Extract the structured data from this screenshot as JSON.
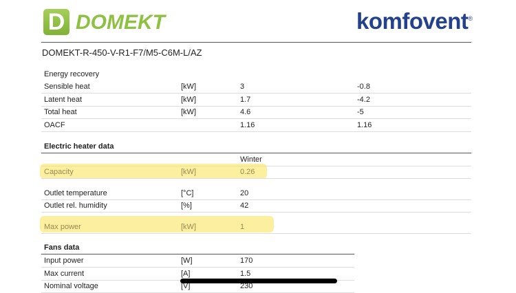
{
  "header": {
    "logo_left": "DOMEKT",
    "logo_left_letter": "D",
    "logo_right": "komfovent",
    "model": "DOMEKT-R-450-V-R1-F7/M5-C6M-L/AZ"
  },
  "energy_recovery": {
    "title": "Energy recovery",
    "rows": [
      {
        "label": "Sensible heat",
        "unit": "[kW]",
        "v1": "3",
        "v2": "-0.8"
      },
      {
        "label": "Latent heat",
        "unit": "[kW]",
        "v1": "1.7",
        "v2": "-4.2"
      },
      {
        "label": "Total heat",
        "unit": "[kW]",
        "v1": "4.6",
        "v2": "-5"
      },
      {
        "label": "OACF",
        "unit": "",
        "v1": "1.16",
        "v2": "1.16"
      }
    ]
  },
  "electric_heater": {
    "title": "Electric heater data",
    "column": "Winter",
    "rows": [
      {
        "label": "Capacity",
        "unit": "[kW]",
        "v1": "0.26"
      },
      {
        "label": "Outlet temperature",
        "unit": "[°C]",
        "v1": "20"
      },
      {
        "label": "Outlet rel. humidity",
        "unit": "[%]",
        "v1": "42"
      },
      {
        "label": "Max power",
        "unit": "[kW]",
        "v1": "1"
      }
    ]
  },
  "fans": {
    "title": "Fans data",
    "rows": [
      {
        "label": "Input power",
        "unit": "[W]",
        "v1": "170"
      },
      {
        "label": "Max current",
        "unit": "[A]",
        "v1": "1.5"
      },
      {
        "label": "Nominal voltage",
        "unit": "[V]",
        "v1": "230"
      }
    ]
  }
}
